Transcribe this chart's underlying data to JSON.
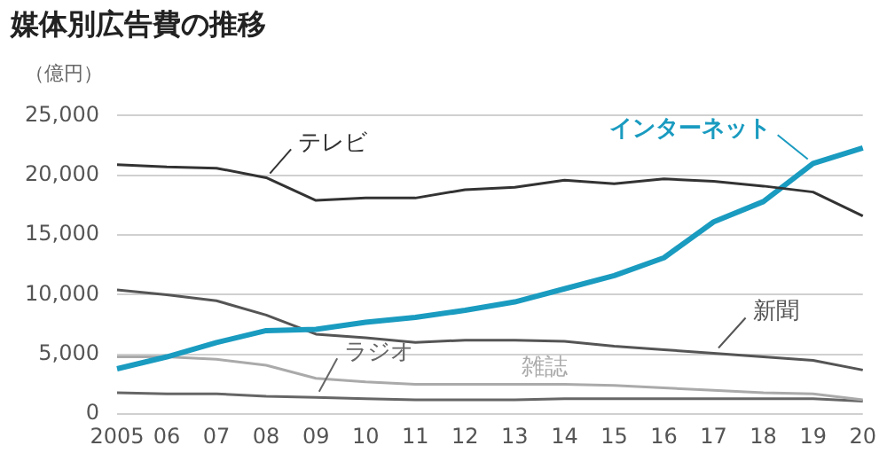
{
  "chart_data": {
    "type": "line",
    "title": "媒体別広告費の推移",
    "ylabel": "（億円）",
    "categories": [
      "2005",
      "06",
      "07",
      "08",
      "09",
      "10",
      "11",
      "12",
      "13",
      "14",
      "15",
      "16",
      "17",
      "18",
      "19",
      "20"
    ],
    "series": [
      {
        "name": "テレビ",
        "color": "#333333",
        "values": [
          20900,
          20700,
          20600,
          19800,
          17900,
          18100,
          18100,
          18800,
          19000,
          19600,
          19300,
          19700,
          19500,
          19100,
          18600,
          16600
        ]
      },
      {
        "name": "インターネット",
        "color": "#1a9bc0",
        "values": [
          3800,
          4800,
          6000,
          7000,
          7100,
          7700,
          8100,
          8700,
          9400,
          10500,
          11600,
          13100,
          16100,
          17800,
          21000,
          22300
        ]
      },
      {
        "name": "新聞",
        "color": "#555555",
        "values": [
          10400,
          10000,
          9500,
          8300,
          6700,
          6400,
          6000,
          6200,
          6200,
          6100,
          5700,
          5400,
          5100,
          4800,
          4500,
          3700
        ]
      },
      {
        "name": "雑誌",
        "color": "#aaaaaa",
        "values": [
          4800,
          4800,
          4600,
          4100,
          3000,
          2700,
          2500,
          2500,
          2500,
          2500,
          2400,
          2200,
          2000,
          1800,
          1700,
          1200
        ]
      },
      {
        "name": "ラジオ",
        "color": "#666666",
        "values": [
          1800,
          1700,
          1700,
          1500,
          1400,
          1300,
          1200,
          1200,
          1200,
          1300,
          1300,
          1300,
          1300,
          1300,
          1300,
          1100
        ]
      }
    ],
    "ylim": [
      0,
      25000
    ],
    "yticks": [
      {
        "value": 0,
        "label": "0"
      },
      {
        "value": 5000,
        "label": "5,000"
      },
      {
        "value": 10000,
        "label": "10,000"
      },
      {
        "value": 15000,
        "label": "15,000"
      },
      {
        "value": 20000,
        "label": "20,000"
      },
      {
        "value": 25000,
        "label": "25,000"
      }
    ],
    "grid": "y",
    "legend": false,
    "marker": "none",
    "line_style": "solid"
  }
}
